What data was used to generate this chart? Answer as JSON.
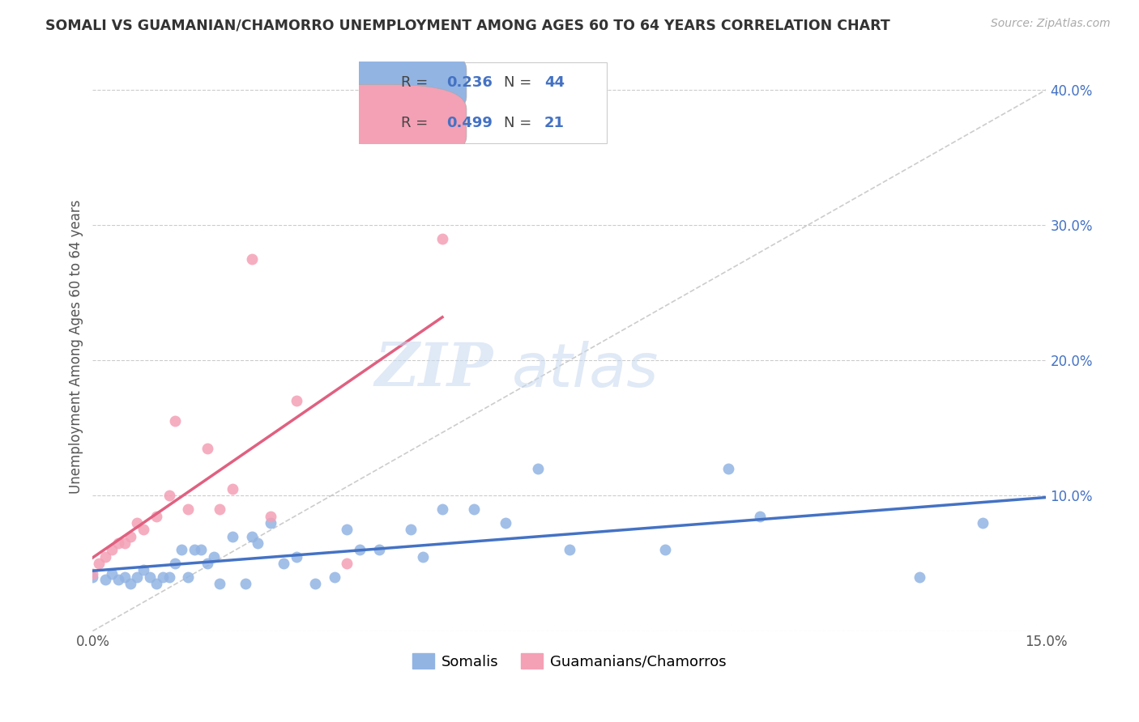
{
  "title": "SOMALI VS GUAMANIAN/CHAMORRO UNEMPLOYMENT AMONG AGES 60 TO 64 YEARS CORRELATION CHART",
  "source": "Source: ZipAtlas.com",
  "ylabel": "Unemployment Among Ages 60 to 64 years",
  "xlim": [
    0.0,
    0.15
  ],
  "ylim": [
    0.0,
    0.42
  ],
  "xticks": [
    0.0,
    0.05,
    0.1,
    0.15
  ],
  "xticklabels": [
    "0.0%",
    "",
    "",
    "15.0%"
  ],
  "yticks": [
    0.1,
    0.2,
    0.3,
    0.4
  ],
  "yticklabels": [
    "10.0%",
    "20.0%",
    "30.0%",
    "40.0%"
  ],
  "somali_R": 0.236,
  "somali_N": 44,
  "guam_R": 0.499,
  "guam_N": 21,
  "somali_color": "#92b4e3",
  "guam_color": "#f4a0b5",
  "somali_line_color": "#4472C4",
  "guam_line_color": "#E06080",
  "ref_line_color": "#c0c0c0",
  "background_color": "#ffffff",
  "watermark_zip": "ZIP",
  "watermark_atlas": "atlas",
  "somali_x": [
    0.0,
    0.002,
    0.003,
    0.004,
    0.005,
    0.006,
    0.007,
    0.008,
    0.009,
    0.01,
    0.011,
    0.012,
    0.013,
    0.014,
    0.015,
    0.016,
    0.017,
    0.018,
    0.019,
    0.02,
    0.022,
    0.024,
    0.025,
    0.026,
    0.028,
    0.03,
    0.032,
    0.035,
    0.038,
    0.04,
    0.042,
    0.045,
    0.05,
    0.052,
    0.055,
    0.06,
    0.065,
    0.07,
    0.075,
    0.09,
    0.1,
    0.105,
    0.13,
    0.14
  ],
  "somali_y": [
    0.04,
    0.038,
    0.042,
    0.038,
    0.04,
    0.035,
    0.04,
    0.045,
    0.04,
    0.035,
    0.04,
    0.04,
    0.05,
    0.06,
    0.04,
    0.06,
    0.06,
    0.05,
    0.055,
    0.035,
    0.07,
    0.035,
    0.07,
    0.065,
    0.08,
    0.05,
    0.055,
    0.035,
    0.04,
    0.075,
    0.06,
    0.06,
    0.075,
    0.055,
    0.09,
    0.09,
    0.08,
    0.12,
    0.06,
    0.06,
    0.12,
    0.085,
    0.04,
    0.08
  ],
  "guam_x": [
    0.0,
    0.001,
    0.002,
    0.003,
    0.004,
    0.005,
    0.006,
    0.007,
    0.008,
    0.01,
    0.012,
    0.013,
    0.015,
    0.018,
    0.02,
    0.022,
    0.025,
    0.028,
    0.032,
    0.04,
    0.055
  ],
  "guam_y": [
    0.042,
    0.05,
    0.055,
    0.06,
    0.065,
    0.065,
    0.07,
    0.08,
    0.075,
    0.085,
    0.1,
    0.155,
    0.09,
    0.135,
    0.09,
    0.105,
    0.275,
    0.085,
    0.17,
    0.05,
    0.29
  ],
  "legend_R_label": "R = ",
  "legend_N_label": "N = ",
  "somali_R_str": "0.236",
  "somali_N_str": "44",
  "guam_R_str": "0.499",
  "guam_N_str": "21",
  "bottom_legend_somali": "Somalis",
  "bottom_legend_guam": "Guamanians/Chamorros"
}
